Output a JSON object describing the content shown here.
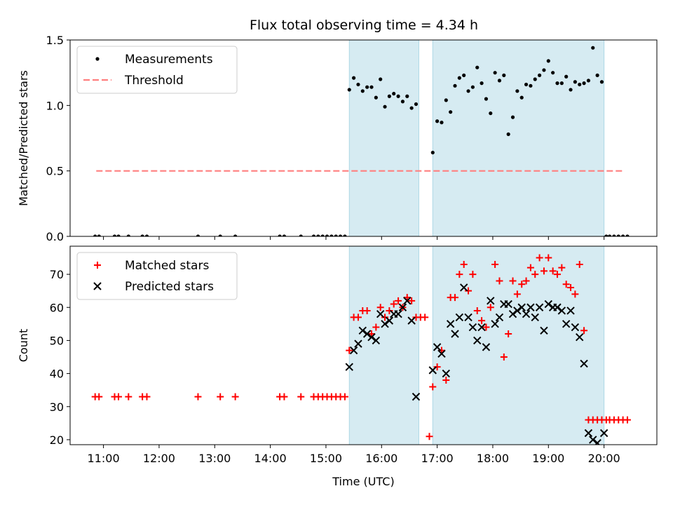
{
  "title": "Flux total observing time = 4.34 h",
  "colors": {
    "shade": "#add8e6",
    "matched": "#ff0000",
    "predicted": "#000000",
    "threshold": "#ff7f7f",
    "measure": "#000000"
  },
  "chart_data": [
    {
      "type": "scatter",
      "ylabel": "Matched/Predicted stars",
      "xlim": [
        10.4,
        20.95
      ],
      "ylim": [
        0,
        1.5
      ],
      "yticks": [
        0.0,
        0.5,
        1.0,
        1.5
      ],
      "ytick_labels": [
        "0.0",
        "0.5",
        "1.0",
        "1.5"
      ],
      "observing_windows": [
        [
          15.42,
          16.67
        ],
        [
          16.92,
          20.0
        ]
      ],
      "legend": {
        "position": "top-left",
        "entries": [
          "Measurements",
          "Threshold"
        ]
      },
      "threshold": {
        "name": "Threshold",
        "value": 0.5,
        "x_range": [
          10.87,
          20.35
        ]
      },
      "series": [
        {
          "name": "Measurements",
          "x": [
            10.85,
            10.92,
            11.2,
            11.27,
            11.45,
            11.7,
            11.78,
            12.7,
            13.1,
            13.37,
            14.17,
            14.25,
            14.55,
            14.78,
            14.86,
            14.94,
            15.02,
            15.1,
            15.18,
            15.26,
            15.34,
            15.42,
            15.5,
            15.58,
            15.66,
            15.74,
            15.82,
            15.9,
            15.98,
            16.06,
            16.14,
            16.22,
            16.3,
            16.38,
            16.46,
            16.54,
            16.62,
            16.92,
            17.0,
            17.08,
            17.16,
            17.24,
            17.32,
            17.4,
            17.48,
            17.56,
            17.64,
            17.72,
            17.8,
            17.88,
            17.96,
            18.04,
            18.12,
            18.2,
            18.28,
            18.36,
            18.44,
            18.52,
            18.6,
            18.68,
            18.76,
            18.84,
            18.92,
            19.0,
            19.08,
            19.16,
            19.24,
            19.32,
            19.4,
            19.48,
            19.56,
            19.64,
            19.72,
            19.8,
            19.88,
            19.96,
            20.04,
            20.1,
            20.18,
            20.26,
            20.34,
            20.42
          ],
          "y": [
            0,
            0,
            0,
            0,
            0,
            0,
            0,
            0,
            0,
            0,
            0,
            0,
            0,
            0,
            0,
            0,
            0,
            0,
            0,
            0,
            0,
            1.12,
            1.21,
            1.16,
            1.11,
            1.14,
            1.14,
            1.06,
            1.2,
            0.99,
            1.07,
            1.09,
            1.07,
            1.03,
            1.07,
            0.98,
            1.01,
            0.64,
            0.88,
            0.87,
            1.04,
            0.95,
            1.15,
            1.21,
            1.23,
            1.11,
            1.14,
            1.29,
            1.17,
            1.05,
            0.94,
            1.25,
            1.19,
            1.23,
            0.78,
            0.91,
            1.11,
            1.06,
            1.16,
            1.15,
            1.2,
            1.23,
            1.27,
            1.34,
            1.25,
            1.17,
            1.17,
            1.22,
            1.12,
            1.18,
            1.16,
            1.17,
            1.19,
            1.44,
            1.23,
            1.18,
            0,
            0,
            0,
            0,
            0,
            0
          ]
        }
      ]
    },
    {
      "type": "scatter",
      "ylabel": "Count",
      "xlabel": "Time (UTC)",
      "xlim": [
        10.4,
        20.95
      ],
      "ylim": [
        18.5,
        78.5
      ],
      "yticks": [
        20,
        30,
        40,
        50,
        60,
        70
      ],
      "ytick_labels": [
        "20",
        "30",
        "40",
        "50",
        "60",
        "70"
      ],
      "xticks": [
        11,
        12,
        13,
        14,
        15,
        16,
        17,
        18,
        19,
        20
      ],
      "xtick_labels": [
        "11:00",
        "12:00",
        "13:00",
        "14:00",
        "15:00",
        "16:00",
        "17:00",
        "18:00",
        "19:00",
        "20:00"
      ],
      "observing_windows": [
        [
          15.42,
          16.67
        ],
        [
          16.92,
          20.0
        ]
      ],
      "legend": {
        "position": "top-left",
        "entries": [
          "Matched stars",
          "Predicted stars"
        ]
      },
      "series": [
        {
          "name": "Matched stars",
          "marker": "plus",
          "x": [
            10.85,
            10.92,
            11.2,
            11.27,
            11.45,
            11.7,
            11.78,
            12.7,
            13.1,
            13.37,
            14.17,
            14.25,
            14.55,
            14.78,
            14.86,
            14.94,
            15.02,
            15.1,
            15.18,
            15.26,
            15.34,
            15.42,
            15.5,
            15.58,
            15.66,
            15.74,
            15.82,
            15.9,
            15.98,
            16.06,
            16.14,
            16.22,
            16.3,
            16.38,
            16.46,
            16.54,
            16.62,
            16.7,
            16.78,
            16.86,
            16.92,
            17.0,
            17.08,
            17.16,
            17.24,
            17.32,
            17.4,
            17.48,
            17.56,
            17.64,
            17.72,
            17.8,
            17.88,
            17.96,
            18.04,
            18.12,
            18.2,
            18.28,
            18.36,
            18.44,
            18.52,
            18.6,
            18.68,
            18.76,
            18.84,
            18.92,
            19.0,
            19.08,
            19.16,
            19.24,
            19.32,
            19.4,
            19.48,
            19.56,
            19.64,
            19.72,
            19.8,
            19.88,
            19.96,
            20.04,
            20.1,
            20.18,
            20.26,
            20.34,
            20.42
          ],
          "y": [
            33,
            33,
            33,
            33,
            33,
            33,
            33,
            33,
            33,
            33,
            33,
            33,
            33,
            33,
            33,
            33,
            33,
            33,
            33,
            33,
            33,
            47,
            57,
            57,
            59,
            59,
            52,
            54,
            60,
            57,
            59,
            61,
            62,
            60,
            63,
            62,
            57,
            57,
            57,
            21,
            36,
            42,
            47,
            38,
            63,
            63,
            70,
            73,
            65,
            70,
            59,
            56,
            54,
            60,
            73,
            68,
            45,
            52,
            68,
            64,
            67,
            68,
            72,
            70,
            75,
            71,
            75,
            71,
            70,
            72,
            67,
            66,
            64,
            73,
            53,
            26,
            26,
            26,
            26,
            26,
            26,
            26,
            26,
            26,
            26
          ],
          "x_note": "",
          "y_note": ""
        },
        {
          "name": "Predicted stars",
          "marker": "x",
          "x": [
            15.42,
            15.5,
            15.58,
            15.66,
            15.74,
            15.82,
            15.9,
            15.98,
            16.06,
            16.14,
            16.22,
            16.3,
            16.38,
            16.46,
            16.54,
            16.62,
            16.92,
            17.0,
            17.08,
            17.16,
            17.24,
            17.32,
            17.4,
            17.48,
            17.56,
            17.64,
            17.72,
            17.8,
            17.88,
            17.96,
            18.04,
            18.12,
            18.2,
            18.28,
            18.36,
            18.44,
            18.52,
            18.6,
            18.68,
            18.76,
            18.84,
            18.92,
            19.0,
            19.08,
            19.16,
            19.24,
            19.32,
            19.4,
            19.48,
            19.56,
            19.64,
            19.72,
            19.8,
            19.88,
            20.0
          ],
          "y": [
            42,
            47,
            49,
            53,
            52,
            51,
            50,
            58,
            55,
            56,
            58,
            58,
            60,
            62,
            56,
            33,
            41,
            48,
            46,
            40,
            55,
            52,
            57,
            66,
            57,
            54,
            50,
            54,
            48,
            62,
            55,
            57,
            61,
            61,
            58,
            59,
            60,
            58,
            60,
            57,
            60,
            53,
            61,
            60,
            60,
            59,
            55,
            59,
            54,
            51,
            43,
            22,
            20,
            19,
            22
          ]
        }
      ]
    }
  ]
}
